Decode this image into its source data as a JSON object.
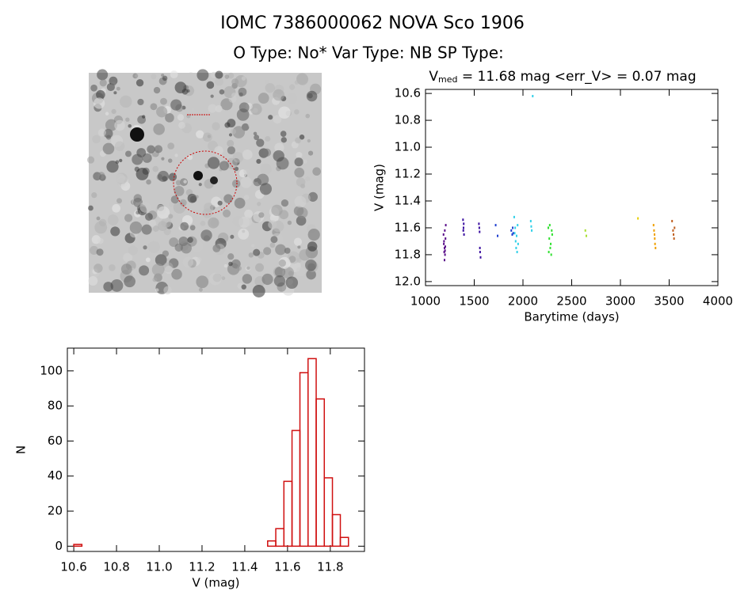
{
  "header": {
    "title": "IOMC 7386000062    NOVA Sco 1906",
    "subtitle": "O Type: No*  Var Type: NB  SP Type:"
  },
  "chart_data": [
    {
      "type": "scatter",
      "title_main": "V",
      "title_sub": "med",
      "title_rest": " = 11.68 mag <err_V> = 0.07 mag",
      "xlabel": "Barytime (days)",
      "ylabel": "V (mag)",
      "xlim": [
        1000,
        4000
      ],
      "xticks": [
        1000,
        1500,
        2000,
        2500,
        3000,
        3500,
        4000
      ],
      "ylim": [
        12.03,
        10.57
      ],
      "yticks": [
        10.6,
        10.8,
        {
          "value": 11.0,
          "label": "11.0"
        },
        11.2,
        11.4,
        11.6,
        11.8,
        {
          "value": 12.0,
          "label": "12.0"
        }
      ],
      "series": [
        {
          "color": "#5a0f8a",
          "x": [
            1185,
            1190,
            1195,
            1200,
            1205,
            1188,
            1192,
            1198,
            1203,
            1208,
            1195,
            1200
          ],
          "values": [
            11.65,
            11.7,
            11.75,
            11.8,
            11.68,
            11.72,
            11.78,
            11.62,
            11.74,
            11.58,
            11.84,
            11.77
          ]
        },
        {
          "color": "#3a0ea0",
          "x": [
            1385,
            1390,
            1395,
            1388,
            1392,
            1548,
            1555,
            1560,
            1565,
            1552,
            1558
          ],
          "values": [
            11.54,
            11.6,
            11.65,
            11.62,
            11.57,
            11.57,
            11.63,
            11.78,
            11.82,
            11.6,
            11.75
          ]
        },
        {
          "color": "#2040d0",
          "x": [
            1720,
            1740,
            1880,
            1890,
            1895,
            1900
          ],
          "values": [
            11.58,
            11.66,
            11.62,
            11.65,
            11.6,
            11.64
          ]
        },
        {
          "color": "#30d0e8",
          "x": [
            1910,
            1920,
            1925,
            1930,
            1935,
            1940,
            1945,
            1950,
            1915,
            2080,
            2090,
            2100,
            2085
          ],
          "values": [
            11.52,
            11.6,
            11.7,
            11.75,
            11.66,
            11.78,
            11.58,
            11.72,
            11.64,
            11.55,
            11.62,
            10.62,
            11.59
          ]
        },
        {
          "color": "#30e030",
          "x": [
            2260,
            2270,
            2280,
            2290,
            2300,
            2275,
            2285,
            2295,
            2265
          ],
          "values": [
            11.6,
            11.68,
            11.75,
            11.8,
            11.65,
            11.58,
            11.72,
            11.62,
            11.78
          ]
        },
        {
          "color": "#a8e030",
          "x": [
            2640,
            2650
          ],
          "values": [
            11.62,
            11.66
          ]
        },
        {
          "color": "#e8d000",
          "x": [
            3180
          ],
          "values": [
            11.53
          ]
        },
        {
          "color": "#f0a000",
          "x": [
            3340,
            3350,
            3355,
            3360,
            3345,
            3352
          ],
          "values": [
            11.58,
            11.65,
            11.72,
            11.75,
            11.62,
            11.68
          ]
        },
        {
          "color": "#c06020",
          "x": [
            3530,
            3540,
            3550,
            3545,
            3555
          ],
          "values": [
            11.55,
            11.62,
            11.68,
            11.65,
            11.6
          ]
        }
      ]
    },
    {
      "type": "histogram",
      "color": "#d01010",
      "xlabel": "V (mag)",
      "ylabel": "N",
      "xlim": [
        10.57,
        11.96
      ],
      "xticks": [
        10.6,
        10.8,
        {
          "value": 11.0,
          "label": "11.0"
        },
        11.2,
        11.4,
        11.6,
        11.8
      ],
      "ylim": [
        -3,
        113
      ],
      "yticks": [
        0,
        20,
        40,
        60,
        80,
        100
      ],
      "bins": [
        10.6,
        10.638,
        10.676,
        10.713,
        10.751,
        10.789,
        10.827,
        10.865,
        10.902,
        10.94,
        10.978,
        11.016,
        11.054,
        11.091,
        11.129,
        11.167,
        11.205,
        11.243,
        11.28,
        11.318,
        11.356,
        11.394,
        11.432,
        11.469,
        11.507,
        11.545,
        11.583,
        11.621,
        11.658,
        11.696,
        11.734,
        11.772,
        11.81,
        11.847,
        11.885
      ],
      "counts": [
        1,
        0,
        0,
        0,
        0,
        0,
        0,
        0,
        0,
        0,
        0,
        0,
        0,
        0,
        0,
        0,
        0,
        0,
        0,
        0,
        0,
        0,
        0,
        0,
        3,
        10,
        37,
        66,
        99,
        107,
        84,
        39,
        18,
        5
      ]
    }
  ]
}
